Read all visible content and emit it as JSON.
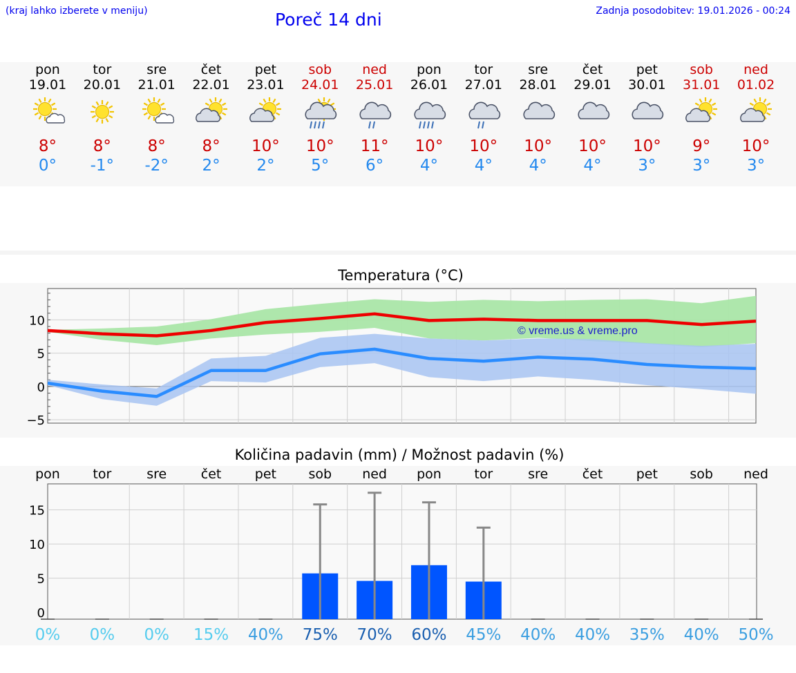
{
  "header": {
    "hint": "(kraj lahko izberete v meniju)",
    "title": "Poreč 14 dni",
    "updated": "Zadnja posodobitev: 19.01.2026 - 00:24"
  },
  "days": [
    {
      "name": "pon",
      "date": "19.01",
      "icon": "sun-cloud",
      "tmax": "8°",
      "tmin": "0°",
      "weekend": false
    },
    {
      "name": "tor",
      "date": "20.01",
      "icon": "sun",
      "tmax": "8°",
      "tmin": "-1°",
      "weekend": false
    },
    {
      "name": "sre",
      "date": "21.01",
      "icon": "sun-cloud",
      "tmax": "8°",
      "tmin": "-2°",
      "weekend": false
    },
    {
      "name": "čet",
      "date": "22.01",
      "icon": "cloud-sun",
      "tmax": "8°",
      "tmin": "2°",
      "weekend": false
    },
    {
      "name": "pet",
      "date": "23.01",
      "icon": "cloud-sun",
      "tmax": "10°",
      "tmin": "2°",
      "weekend": false
    },
    {
      "name": "sob",
      "date": "24.01",
      "icon": "cloud-sun-rain",
      "tmax": "10°",
      "tmin": "5°",
      "weekend": true
    },
    {
      "name": "ned",
      "date": "25.01",
      "icon": "cloud-rain-light",
      "tmax": "11°",
      "tmin": "6°",
      "weekend": true
    },
    {
      "name": "pon",
      "date": "26.01",
      "icon": "cloud-rain-heavy",
      "tmax": "10°",
      "tmin": "4°",
      "weekend": false
    },
    {
      "name": "tor",
      "date": "27.01",
      "icon": "cloud-rain-light",
      "tmax": "10°",
      "tmin": "4°",
      "weekend": false
    },
    {
      "name": "sre",
      "date": "28.01",
      "icon": "cloud",
      "tmax": "10°",
      "tmin": "4°",
      "weekend": false
    },
    {
      "name": "čet",
      "date": "29.01",
      "icon": "cloud",
      "tmax": "10°",
      "tmin": "4°",
      "weekend": false
    },
    {
      "name": "pet",
      "date": "30.01",
      "icon": "cloud",
      "tmax": "10°",
      "tmin": "3°",
      "weekend": false
    },
    {
      "name": "sob",
      "date": "31.01",
      "icon": "cloud-sun",
      "tmax": "9°",
      "tmin": "3°",
      "weekend": true
    },
    {
      "name": "ned",
      "date": "01.02",
      "icon": "cloud-sun",
      "tmax": "10°",
      "tmin": "3°",
      "weekend": true
    }
  ],
  "colors": {
    "max_line": "#ee0000",
    "max_band": "#aae6a8",
    "min_line": "#2a8cff",
    "min_band": "#a8c4f2",
    "bar": "#0055ff",
    "whisker": "#888888",
    "weekend": "#cc0000",
    "tmin_text": "#2288ee"
  },
  "chart_data": [
    {
      "type": "line",
      "title": "Temperatura (°C)",
      "watermark": "© vreme.us & vreme.pro",
      "ylim": [
        -5.5,
        14.7
      ],
      "yticks": [
        -5,
        0,
        5,
        10
      ],
      "ytick_labels": [
        "−5",
        "0",
        "5",
        "10"
      ],
      "series": [
        {
          "name": "max",
          "values": [
            8.4,
            7.9,
            7.6,
            8.4,
            9.6,
            10.2,
            10.9,
            9.9,
            10.1,
            9.9,
            9.9,
            9.9,
            9.3,
            9.8
          ],
          "band_low": [
            8.2,
            7.0,
            6.2,
            7.2,
            7.8,
            8.2,
            8.8,
            7.2,
            6.9,
            7.3,
            6.8,
            6.4,
            5.9,
            6.5
          ],
          "band_high": [
            8.5,
            8.7,
            9.0,
            10.1,
            11.6,
            12.4,
            13.1,
            12.7,
            13.0,
            12.8,
            13.0,
            13.1,
            12.5,
            13.6
          ]
        },
        {
          "name": "min",
          "values": [
            0.5,
            -0.7,
            -1.5,
            2.4,
            2.4,
            4.9,
            5.6,
            4.2,
            3.8,
            4.4,
            4.1,
            3.3,
            2.9,
            2.7
          ],
          "band_low": [
            0.2,
            -1.9,
            -2.9,
            0.8,
            0.6,
            2.9,
            3.5,
            1.4,
            0.8,
            1.5,
            1.0,
            0.2,
            -0.4,
            -1.1
          ],
          "band_high": [
            1.0,
            0.3,
            -0.3,
            4.2,
            4.6,
            7.3,
            7.9,
            7.2,
            6.9,
            7.2,
            7.1,
            6.5,
            6.1,
            6.4
          ]
        }
      ]
    },
    {
      "type": "bar",
      "title": "Količina padavin (mm) / Možnost padavin (%)",
      "categories": [
        "pon",
        "tor",
        "sre",
        "čet",
        "pet",
        "sob",
        "ned",
        "pon",
        "tor",
        "sre",
        "čet",
        "pet",
        "sob",
        "ned"
      ],
      "values": [
        0,
        0,
        0,
        0,
        0,
        5.7,
        4.6,
        6.9,
        4.5,
        0,
        0,
        0,
        0,
        0
      ],
      "max_values": [
        0,
        0,
        0,
        0,
        0,
        15.8,
        17.5,
        16.1,
        12.4,
        0,
        0,
        0,
        0,
        0
      ],
      "probability": [
        "0%",
        "0%",
        "0%",
        "15%",
        "40%",
        "75%",
        "70%",
        "60%",
        "45%",
        "40%",
        "40%",
        "35%",
        "40%",
        "50%"
      ],
      "prob_values": [
        0,
        0,
        0,
        15,
        40,
        75,
        70,
        60,
        45,
        40,
        40,
        35,
        40,
        50
      ],
      "ylim": [
        -1,
        18.8
      ],
      "yticks": [
        0,
        5,
        10,
        15
      ],
      "ytick_labels": [
        "0",
        "5",
        "10",
        "15"
      ]
    }
  ]
}
